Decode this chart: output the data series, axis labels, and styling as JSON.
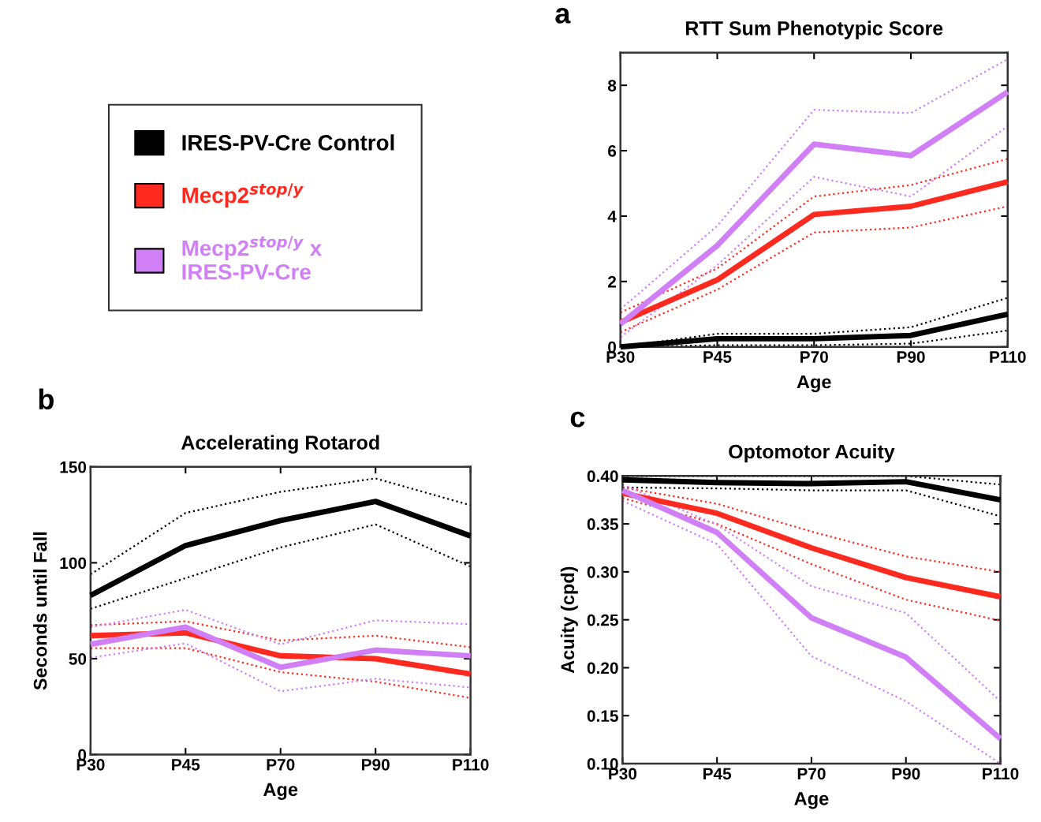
{
  "chart_data": [
    {
      "type": "line",
      "title": "RTT Sum Phenotypic Score",
      "xlabel": "Age",
      "annotations": [
        "a"
      ],
      "categories": [
        "P30",
        "P45",
        "P70",
        "P90",
        "P110"
      ],
      "ylim": [
        0,
        9
      ],
      "yticks": [
        0,
        2,
        4,
        6,
        8
      ],
      "grid": false,
      "legend": "left",
      "line_style": "solid",
      "series": [
        {
          "color": "#000000",
          "line_style": "dotted",
          "values": [
            0,
            0.05,
            0.05,
            0.1,
            0.5
          ]
        },
        {
          "color": "#000000",
          "line_style": "dotted",
          "values": [
            0,
            0.4,
            0.4,
            0.6,
            1.5
          ]
        },
        {
          "color": "#ff2a1f",
          "line_style": "dotted",
          "values": [
            0.45,
            1.75,
            3.5,
            3.65,
            4.3
          ]
        },
        {
          "color": "#ff2a1f",
          "line_style": "dotted",
          "values": [
            1.05,
            2.4,
            4.6,
            4.95,
            5.75
          ]
        },
        {
          "color": "#d07ff7",
          "line_style": "dotted",
          "values": [
            0.3,
            2.5,
            5.2,
            4.6,
            6.75
          ]
        },
        {
          "color": "#d07ff7",
          "line_style": "dotted",
          "values": [
            1.15,
            3.7,
            7.25,
            7.15,
            8.8
          ]
        },
        {
          "name": "IRES-PV-Cre Control",
          "color": "#000000",
          "values": [
            0,
            0.25,
            0.25,
            0.35,
            1.0
          ]
        },
        {
          "name": "Mecp2$^{stop/y}$",
          "color": "#ff2a1f",
          "values": [
            0.75,
            2.05,
            4.05,
            4.3,
            5.05
          ]
        },
        {
          "name": "Mecp2$^{stop/y}$ x\nIRES-PV-Cre",
          "color": "#d07ff7",
          "values": [
            0.7,
            3.1,
            6.2,
            5.85,
            7.8
          ]
        }
      ]
    },
    {
      "type": "line",
      "title": "Accelerating Rotarod",
      "xlabel": "Age",
      "ylabel": "Seconds until Fall",
      "annotations": [
        "b"
      ],
      "categories": [
        "P30",
        "P45",
        "P70",
        "P90",
        "P110"
      ],
      "ylim": [
        0,
        150
      ],
      "yticks": [
        0,
        50,
        100,
        150
      ],
      "grid": false,
      "line_style": "solid",
      "series": [
        {
          "color": "#000000",
          "line_style": "dotted",
          "values": [
            76,
            92,
            108,
            120,
            98
          ]
        },
        {
          "color": "#000000",
          "line_style": "dotted",
          "values": [
            94,
            126,
            137,
            144,
            130
          ]
        },
        {
          "color": "#ff2a1f",
          "line_style": "dotted",
          "values": [
            55.5,
            55.5,
            43,
            38,
            29.5
          ]
        },
        {
          "color": "#ff2a1f",
          "line_style": "dotted",
          "values": [
            67.5,
            69.5,
            59.5,
            62,
            56
          ]
        },
        {
          "color": "#d07ff7",
          "line_style": "dotted",
          "values": [
            50.5,
            58,
            33,
            39.5,
            35
          ]
        },
        {
          "color": "#d07ff7",
          "line_style": "dotted",
          "values": [
            66.5,
            75.5,
            57.5,
            70,
            68
          ]
        },
        {
          "color": "#000000",
          "values": [
            83,
            109,
            122,
            132,
            114
          ]
        },
        {
          "color": "#ff2a1f",
          "values": [
            62,
            63.5,
            51.5,
            50,
            42
          ]
        },
        {
          "color": "#d07ff7",
          "values": [
            57.5,
            66.5,
            45.5,
            54.5,
            51.5
          ]
        }
      ]
    },
    {
      "type": "line",
      "title": "Optomotor Acuity",
      "xlabel": "Age",
      "ylabel": "Acuity (cpd)",
      "annotations": [
        "c"
      ],
      "categories": [
        "P30",
        "P45",
        "P70",
        "P90",
        "P110"
      ],
      "ylim": [
        0.1,
        0.4
      ],
      "yticks": [
        {
          "value": 0.1,
          "label": "0.10"
        },
        {
          "value": 0.15,
          "label": "0.15"
        },
        {
          "value": 0.2,
          "label": "0.20"
        },
        {
          "value": 0.25,
          "label": "0.25"
        },
        {
          "value": 0.3,
          "label": "0.30"
        },
        {
          "value": 0.35,
          "label": "0.35"
        },
        {
          "value": 0.4,
          "label": "0.40"
        }
      ],
      "grid": false,
      "line_style": "solid",
      "series": [
        {
          "color": "#000000",
          "line_style": "dotted",
          "values": [
            0.388,
            0.387,
            0.385,
            0.385,
            0.358
          ]
        },
        {
          "color": "#000000",
          "line_style": "dotted",
          "values": [
            0.4,
            0.4,
            0.4,
            0.4,
            0.391
          ]
        },
        {
          "color": "#ff2a1f",
          "line_style": "dotted",
          "values": [
            0.377,
            0.35,
            0.308,
            0.271,
            0.249
          ]
        },
        {
          "color": "#ff2a1f",
          "line_style": "dotted",
          "values": [
            0.388,
            0.371,
            0.342,
            0.316,
            0.3
          ]
        },
        {
          "color": "#d07ff7",
          "line_style": "dotted",
          "values": [
            0.374,
            0.329,
            0.212,
            0.165,
            0.1
          ]
        },
        {
          "color": "#d07ff7",
          "line_style": "dotted",
          "values": [
            0.391,
            0.349,
            0.285,
            0.257,
            0.165
          ]
        },
        {
          "color": "#000000",
          "values": [
            0.396,
            0.393,
            0.392,
            0.394,
            0.375
          ]
        },
        {
          "color": "#ff2a1f",
          "values": [
            0.382,
            0.361,
            0.325,
            0.294,
            0.274
          ]
        },
        {
          "color": "#d07ff7",
          "values": [
            0.385,
            0.341,
            0.252,
            0.211,
            0.126
          ]
        }
      ]
    }
  ]
}
